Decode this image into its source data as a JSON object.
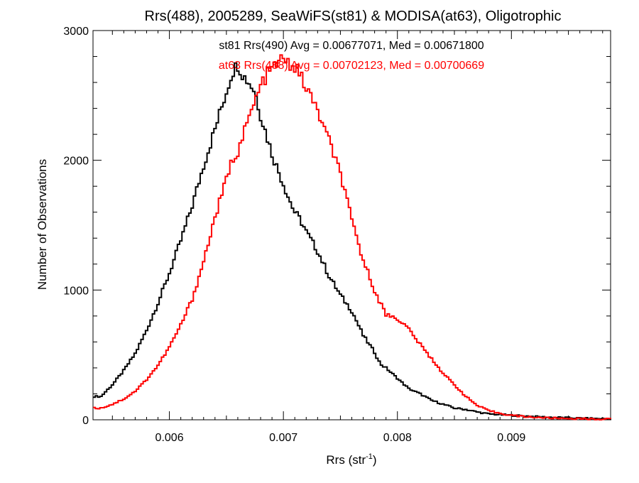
{
  "chart_data": {
    "type": "line",
    "step": true,
    "title": "Rrs(488), 2005289, SeaWiFS(st81) & MODISA(at63), Oligotrophic",
    "xlabel": {
      "base": "Rrs (str",
      "sup": "-1",
      "close": ")"
    },
    "ylabel": "Number of Observations",
    "xlim": [
      0.00533,
      0.00987
    ],
    "ylim": [
      0,
      3000
    ],
    "x_ticks": [
      0.006,
      0.007,
      0.008,
      0.009
    ],
    "x_tick_labels": [
      "0.006",
      "0.007",
      "0.008",
      "0.009"
    ],
    "y_ticks": [
      0,
      1000,
      2000,
      3000
    ],
    "y_tick_labels": [
      "0",
      "1000",
      "2000",
      "3000"
    ],
    "grid": false,
    "annotations": [
      {
        "text": "st81 Rrs(490) Avg = 0.00677071, Med = 0.00671800",
        "color": "#000000"
      },
      {
        "text": "at63 Rrs(488) Avg = 0.00702123, Med = 0.00700669",
        "color": "#ff0000"
      }
    ],
    "x": [
      0.0054,
      0.0055,
      0.0056,
      0.0057,
      0.0058,
      0.0059,
      0.006,
      0.0061,
      0.0062,
      0.0063,
      0.0064,
      0.0065,
      0.00655,
      0.0066,
      0.00665,
      0.0067,
      0.00675,
      0.0068,
      0.00685,
      0.0069,
      0.00695,
      0.007,
      0.00705,
      0.0071,
      0.00715,
      0.0072,
      0.0073,
      0.0074,
      0.0075,
      0.0076,
      0.0077,
      0.0078,
      0.00785,
      0.0079,
      0.00795,
      0.008,
      0.0081,
      0.0082,
      0.0083,
      0.0084,
      0.0085,
      0.0086,
      0.0087,
      0.0088,
      0.0089,
      0.009,
      0.0091,
      0.0092,
      0.0093,
      0.0094,
      0.0095,
      0.0096,
      0.0097,
      0.0098
    ],
    "series": [
      {
        "name": "st81 Rrs(490)",
        "color": "#000000",
        "values": [
          180,
          270,
          380,
          510,
          690,
          900,
          1130,
          1380,
          1650,
          1960,
          2240,
          2530,
          2680,
          2740,
          2650,
          2600,
          2530,
          2350,
          2200,
          2050,
          1930,
          1820,
          1700,
          1600,
          1540,
          1450,
          1300,
          1110,
          960,
          840,
          650,
          520,
          430,
          400,
          360,
          320,
          240,
          200,
          150,
          120,
          90,
          80,
          60,
          45,
          40,
          35,
          30,
          25,
          20,
          18,
          15,
          12,
          10,
          8
        ]
      },
      {
        "name": "at63 Rrs(488)",
        "color": "#ff0000",
        "values": [
          90,
          120,
          160,
          220,
          310,
          420,
          560,
          730,
          930,
          1220,
          1560,
          1850,
          2000,
          2070,
          2200,
          2330,
          2450,
          2570,
          2650,
          2700,
          2760,
          2770,
          2740,
          2720,
          2650,
          2560,
          2380,
          2150,
          1900,
          1530,
          1230,
          1000,
          900,
          810,
          800,
          780,
          700,
          580,
          470,
          360,
          270,
          180,
          110,
          70,
          50,
          35,
          25,
          20,
          15,
          12,
          10,
          8,
          6,
          5
        ]
      }
    ]
  }
}
